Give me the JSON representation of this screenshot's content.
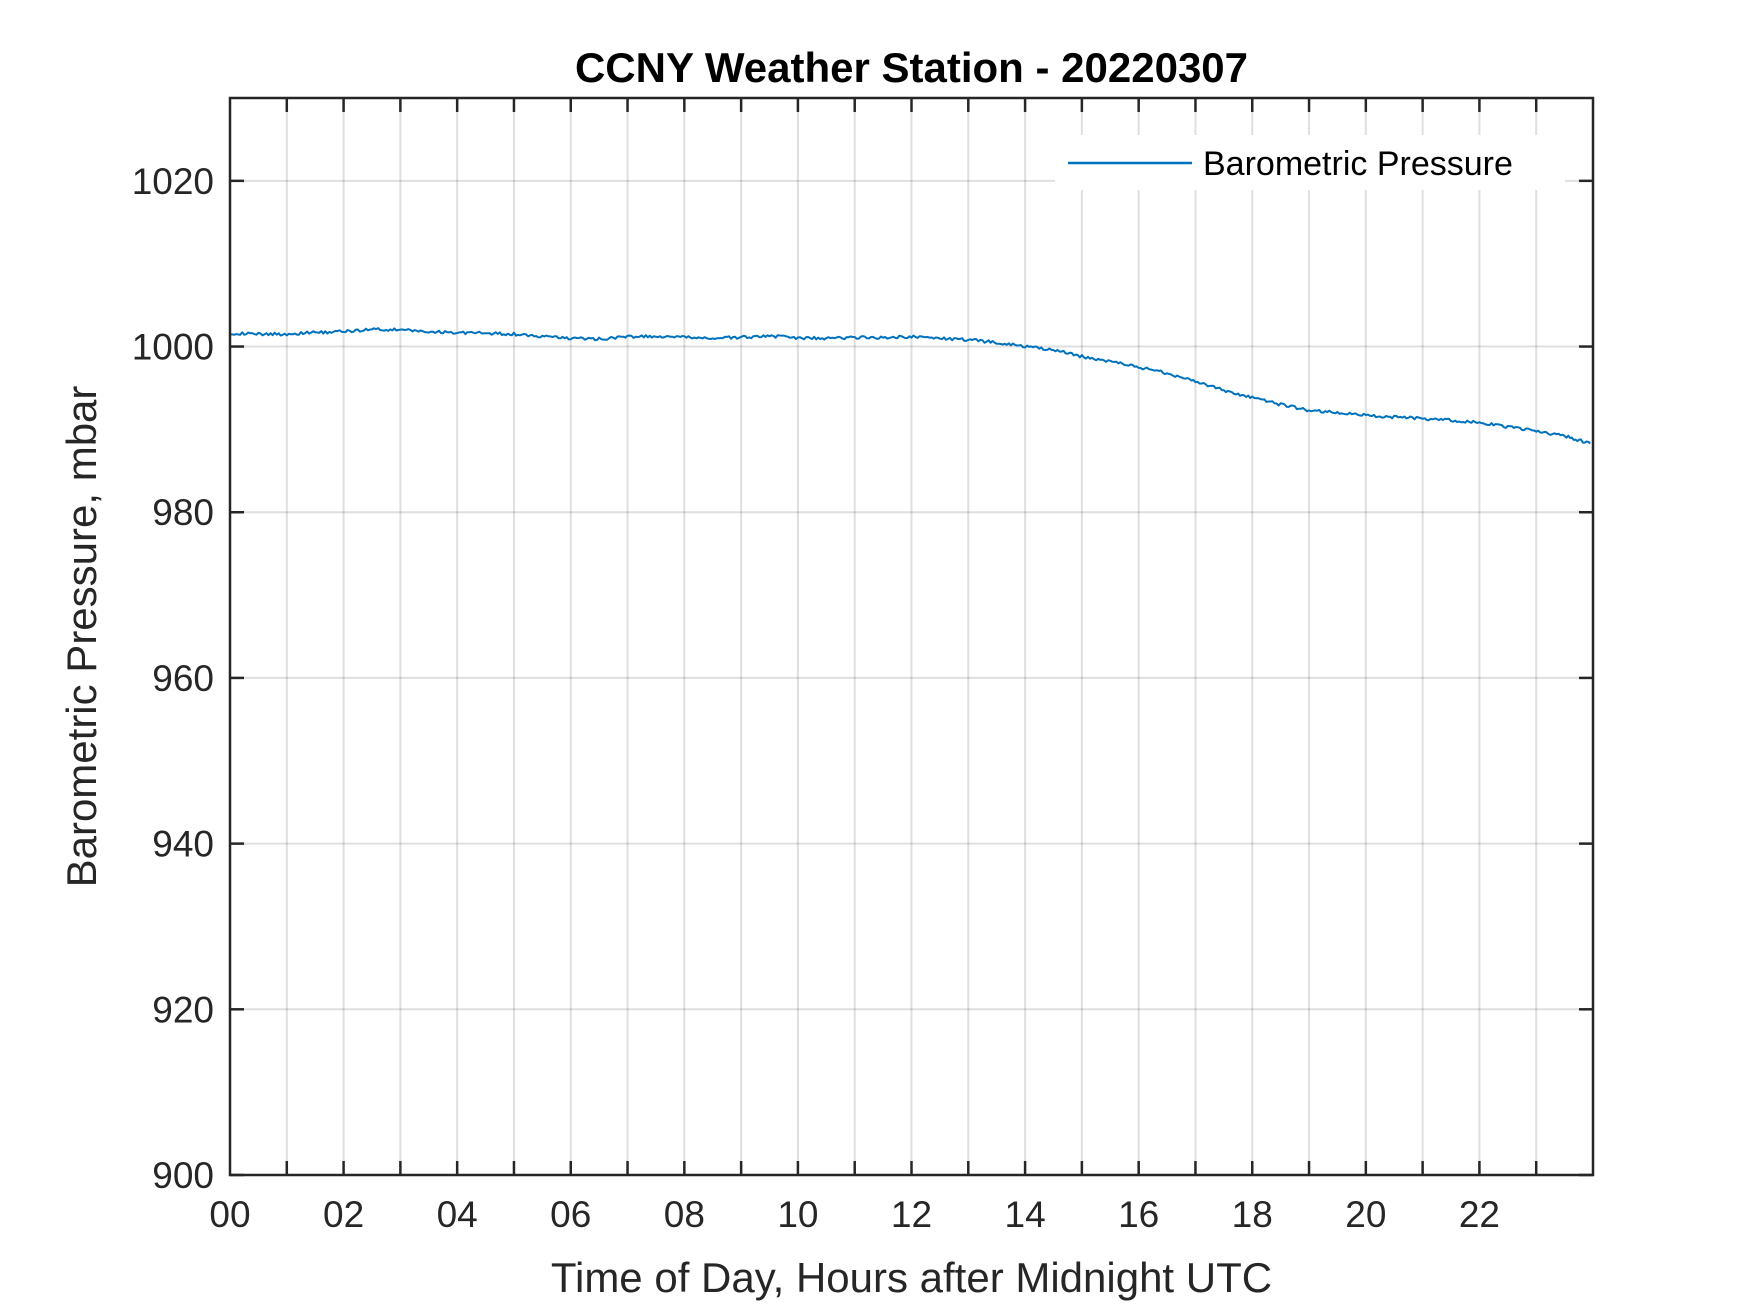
{
  "chart_data": {
    "type": "line",
    "title": "CCNY Weather Station - 20220307",
    "xlabel": "Time of Day, Hours after Midnight UTC",
    "ylabel": "Barometric Pressure, mbar",
    "xlim": [
      0,
      24
    ],
    "ylim": [
      900,
      1030
    ],
    "xticks": [
      0,
      2,
      4,
      6,
      8,
      10,
      12,
      14,
      16,
      18,
      20,
      22
    ],
    "xtick_labels": [
      "00",
      "02",
      "04",
      "06",
      "08",
      "10",
      "12",
      "14",
      "16",
      "18",
      "20",
      "22"
    ],
    "yticks": [
      900,
      920,
      940,
      960,
      980,
      1000,
      1020
    ],
    "ytick_labels": [
      "900",
      "920",
      "940",
      "960",
      "980",
      "1000",
      "1020"
    ],
    "grid": true,
    "legend_location": "top-right",
    "series": [
      {
        "name": "Barometric Pressure",
        "color": "#0072BD",
        "x": [
          0,
          0.5,
          1,
          1.5,
          2,
          2.5,
          3,
          3.5,
          4,
          4.5,
          5,
          5.5,
          6,
          6.5,
          7,
          7.5,
          8,
          8.5,
          9,
          9.5,
          10,
          10.5,
          11,
          11.5,
          12,
          12.5,
          13,
          13.5,
          14,
          14.5,
          15,
          15.5,
          16,
          16.5,
          17,
          17.5,
          18,
          18.5,
          19,
          19.5,
          20,
          20.5,
          21,
          21.5,
          22,
          22.5,
          23,
          23.5,
          23.95
        ],
        "y": [
          1001.6,
          1001.5,
          1001.5,
          1001.7,
          1001.8,
          1002.1,
          1002.0,
          1001.8,
          1001.7,
          1001.6,
          1001.5,
          1001.2,
          1001.0,
          1000.9,
          1001.2,
          1001.2,
          1001.1,
          1001.0,
          1001.1,
          1001.3,
          1001.0,
          1001.0,
          1001.1,
          1001.1,
          1001.2,
          1001.0,
          1000.8,
          1000.5,
          1000.0,
          999.6,
          998.8,
          998.2,
          997.5,
          996.8,
          995.8,
          994.7,
          993.8,
          993.0,
          992.3,
          992.0,
          991.7,
          991.5,
          991.3,
          991.1,
          990.8,
          990.3,
          989.8,
          989.2,
          988.3
        ]
      }
    ]
  }
}
